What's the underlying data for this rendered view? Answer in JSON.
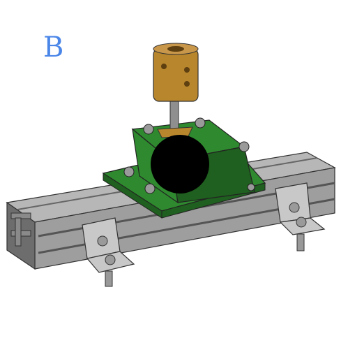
{
  "panel": {
    "label": "B",
    "label_color": "#4a86e8"
  },
  "colors": {
    "extrusion": "#b7b7b7",
    "extrusion_dark": "#6d6d6d",
    "bracket": "#c8c8c8",
    "mount": "#2f8a2f",
    "mount_dark": "#1f5f1f",
    "coupler": "#b8862c",
    "coupler_dark": "#7a5516",
    "shaft": "#8f8f8f",
    "occluder": "#000000"
  }
}
